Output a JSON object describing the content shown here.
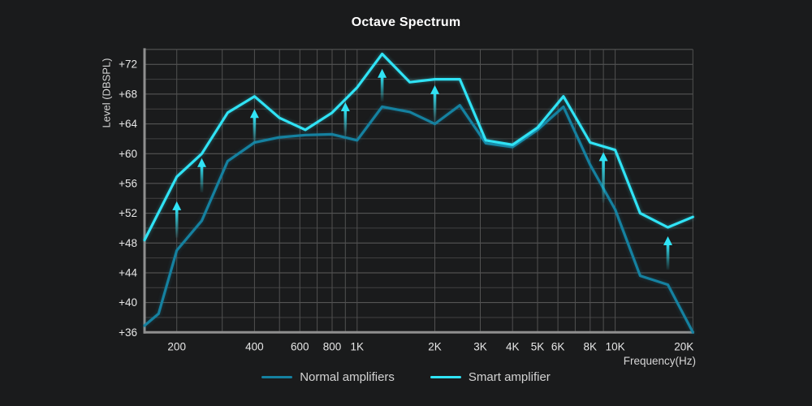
{
  "title": "Octave Spectrum",
  "colors": {
    "background": "#1a1b1c",
    "smart_accent": "#30e3f5",
    "normal_accent": "#1581a0",
    "grid_major": "#5d5d5d",
    "grid_minor": "#424242",
    "grid_vertical": "#515151",
    "axis": "#8f8f8f",
    "tick_text": "#e6e6e6",
    "title_text": "#ffffff"
  },
  "chart_data": {
    "type": "line",
    "title": "Octave Spectrum",
    "xlabel": "Frequency(Hz)",
    "ylabel": "Level (DBSPL)",
    "x_scale": "log",
    "xlim": [
      150,
      20000
    ],
    "ylim": [
      36,
      74
    ],
    "grid": "on",
    "legend_position": "bottom-center",
    "y_grid": {
      "min": 36,
      "max": 74,
      "minor_step": 2,
      "major_step": 4
    },
    "y_ticks": [
      {
        "v": 36,
        "label": "+36"
      },
      {
        "v": 40,
        "label": "+40"
      },
      {
        "v": 44,
        "label": "+44"
      },
      {
        "v": 48,
        "label": "+48"
      },
      {
        "v": 52,
        "label": "+52"
      },
      {
        "v": 56,
        "label": "+56"
      },
      {
        "v": 60,
        "label": "+60"
      },
      {
        "v": 64,
        "label": "+64"
      },
      {
        "v": 68,
        "label": "+68"
      },
      {
        "v": 72,
        "label": "+72"
      }
    ],
    "x_ticks": [
      {
        "f": 200,
        "label": "200"
      },
      {
        "f": 400,
        "label": "400"
      },
      {
        "f": 600,
        "label": "600"
      },
      {
        "f": 800,
        "label": "800"
      },
      {
        "f": 1000,
        "label": "1K"
      },
      {
        "f": 2000,
        "label": "2K"
      },
      {
        "f": 3000,
        "label": "3K"
      },
      {
        "f": 4000,
        "label": "4K"
      },
      {
        "f": 5000,
        "label": "5K"
      },
      {
        "f": 6000,
        "label": "6K"
      },
      {
        "f": 8000,
        "label": "8K"
      },
      {
        "f": 10000,
        "label": "10K"
      },
      {
        "f": 20000,
        "label": "20K"
      }
    ],
    "x_gridlines": [
      200,
      300,
      400,
      500,
      600,
      700,
      800,
      900,
      1000,
      2000,
      3000,
      4000,
      5000,
      6000,
      7000,
      8000,
      9000,
      10000,
      20000
    ],
    "series": [
      {
        "name": "Normal amplifiers",
        "color": "#1581a0",
        "points": [
          [
            150,
            36.9
          ],
          [
            170,
            38.5
          ],
          [
            200,
            47.0
          ],
          [
            250,
            51.0
          ],
          [
            315,
            59.0
          ],
          [
            400,
            61.5
          ],
          [
            500,
            62.2
          ],
          [
            630,
            62.5
          ],
          [
            800,
            62.6
          ],
          [
            1000,
            61.8
          ],
          [
            1250,
            66.3
          ],
          [
            1600,
            65.6
          ],
          [
            2000,
            64.0
          ],
          [
            2500,
            66.5
          ],
          [
            3150,
            61.4
          ],
          [
            4000,
            60.9
          ],
          [
            5000,
            63.2
          ],
          [
            6300,
            66.3
          ],
          [
            8000,
            58.5
          ],
          [
            10000,
            52.5
          ],
          [
            12500,
            43.6
          ],
          [
            16000,
            42.4
          ],
          [
            20000,
            36.0
          ]
        ]
      },
      {
        "name": "Smart amplifier",
        "color": "#30e3f5",
        "points": [
          [
            150,
            48.4
          ],
          [
            200,
            56.9
          ],
          [
            250,
            60.0
          ],
          [
            315,
            65.5
          ],
          [
            400,
            67.7
          ],
          [
            500,
            64.8
          ],
          [
            630,
            63.2
          ],
          [
            800,
            65.5
          ],
          [
            1000,
            68.9
          ],
          [
            1250,
            73.4
          ],
          [
            1600,
            69.6
          ],
          [
            2000,
            70.0
          ],
          [
            2500,
            70.0
          ],
          [
            3150,
            61.8
          ],
          [
            4000,
            61.2
          ],
          [
            5000,
            63.5
          ],
          [
            6300,
            67.7
          ],
          [
            8000,
            61.5
          ],
          [
            10000,
            60.5
          ],
          [
            12500,
            52.0
          ],
          [
            16000,
            50.1
          ],
          [
            20000,
            51.5
          ]
        ]
      }
    ],
    "arrows": [
      {
        "f": 200,
        "from_db": 48.7,
        "to_db": 53.6
      },
      {
        "f": 250,
        "from_db": 54.8,
        "to_db": 59.4
      },
      {
        "f": 400,
        "from_db": 61.4,
        "to_db": 66.0
      },
      {
        "f": 900,
        "from_db": 62.4,
        "to_db": 66.9
      },
      {
        "f": 1250,
        "from_db": 67.0,
        "to_db": 71.4
      },
      {
        "f": 2000,
        "from_db": 64.4,
        "to_db": 69.2
      },
      {
        "f": 9000,
        "from_db": 53.4,
        "to_db": 60.2
      },
      {
        "f": 16000,
        "from_db": 44.4,
        "to_db": 48.9
      }
    ]
  }
}
